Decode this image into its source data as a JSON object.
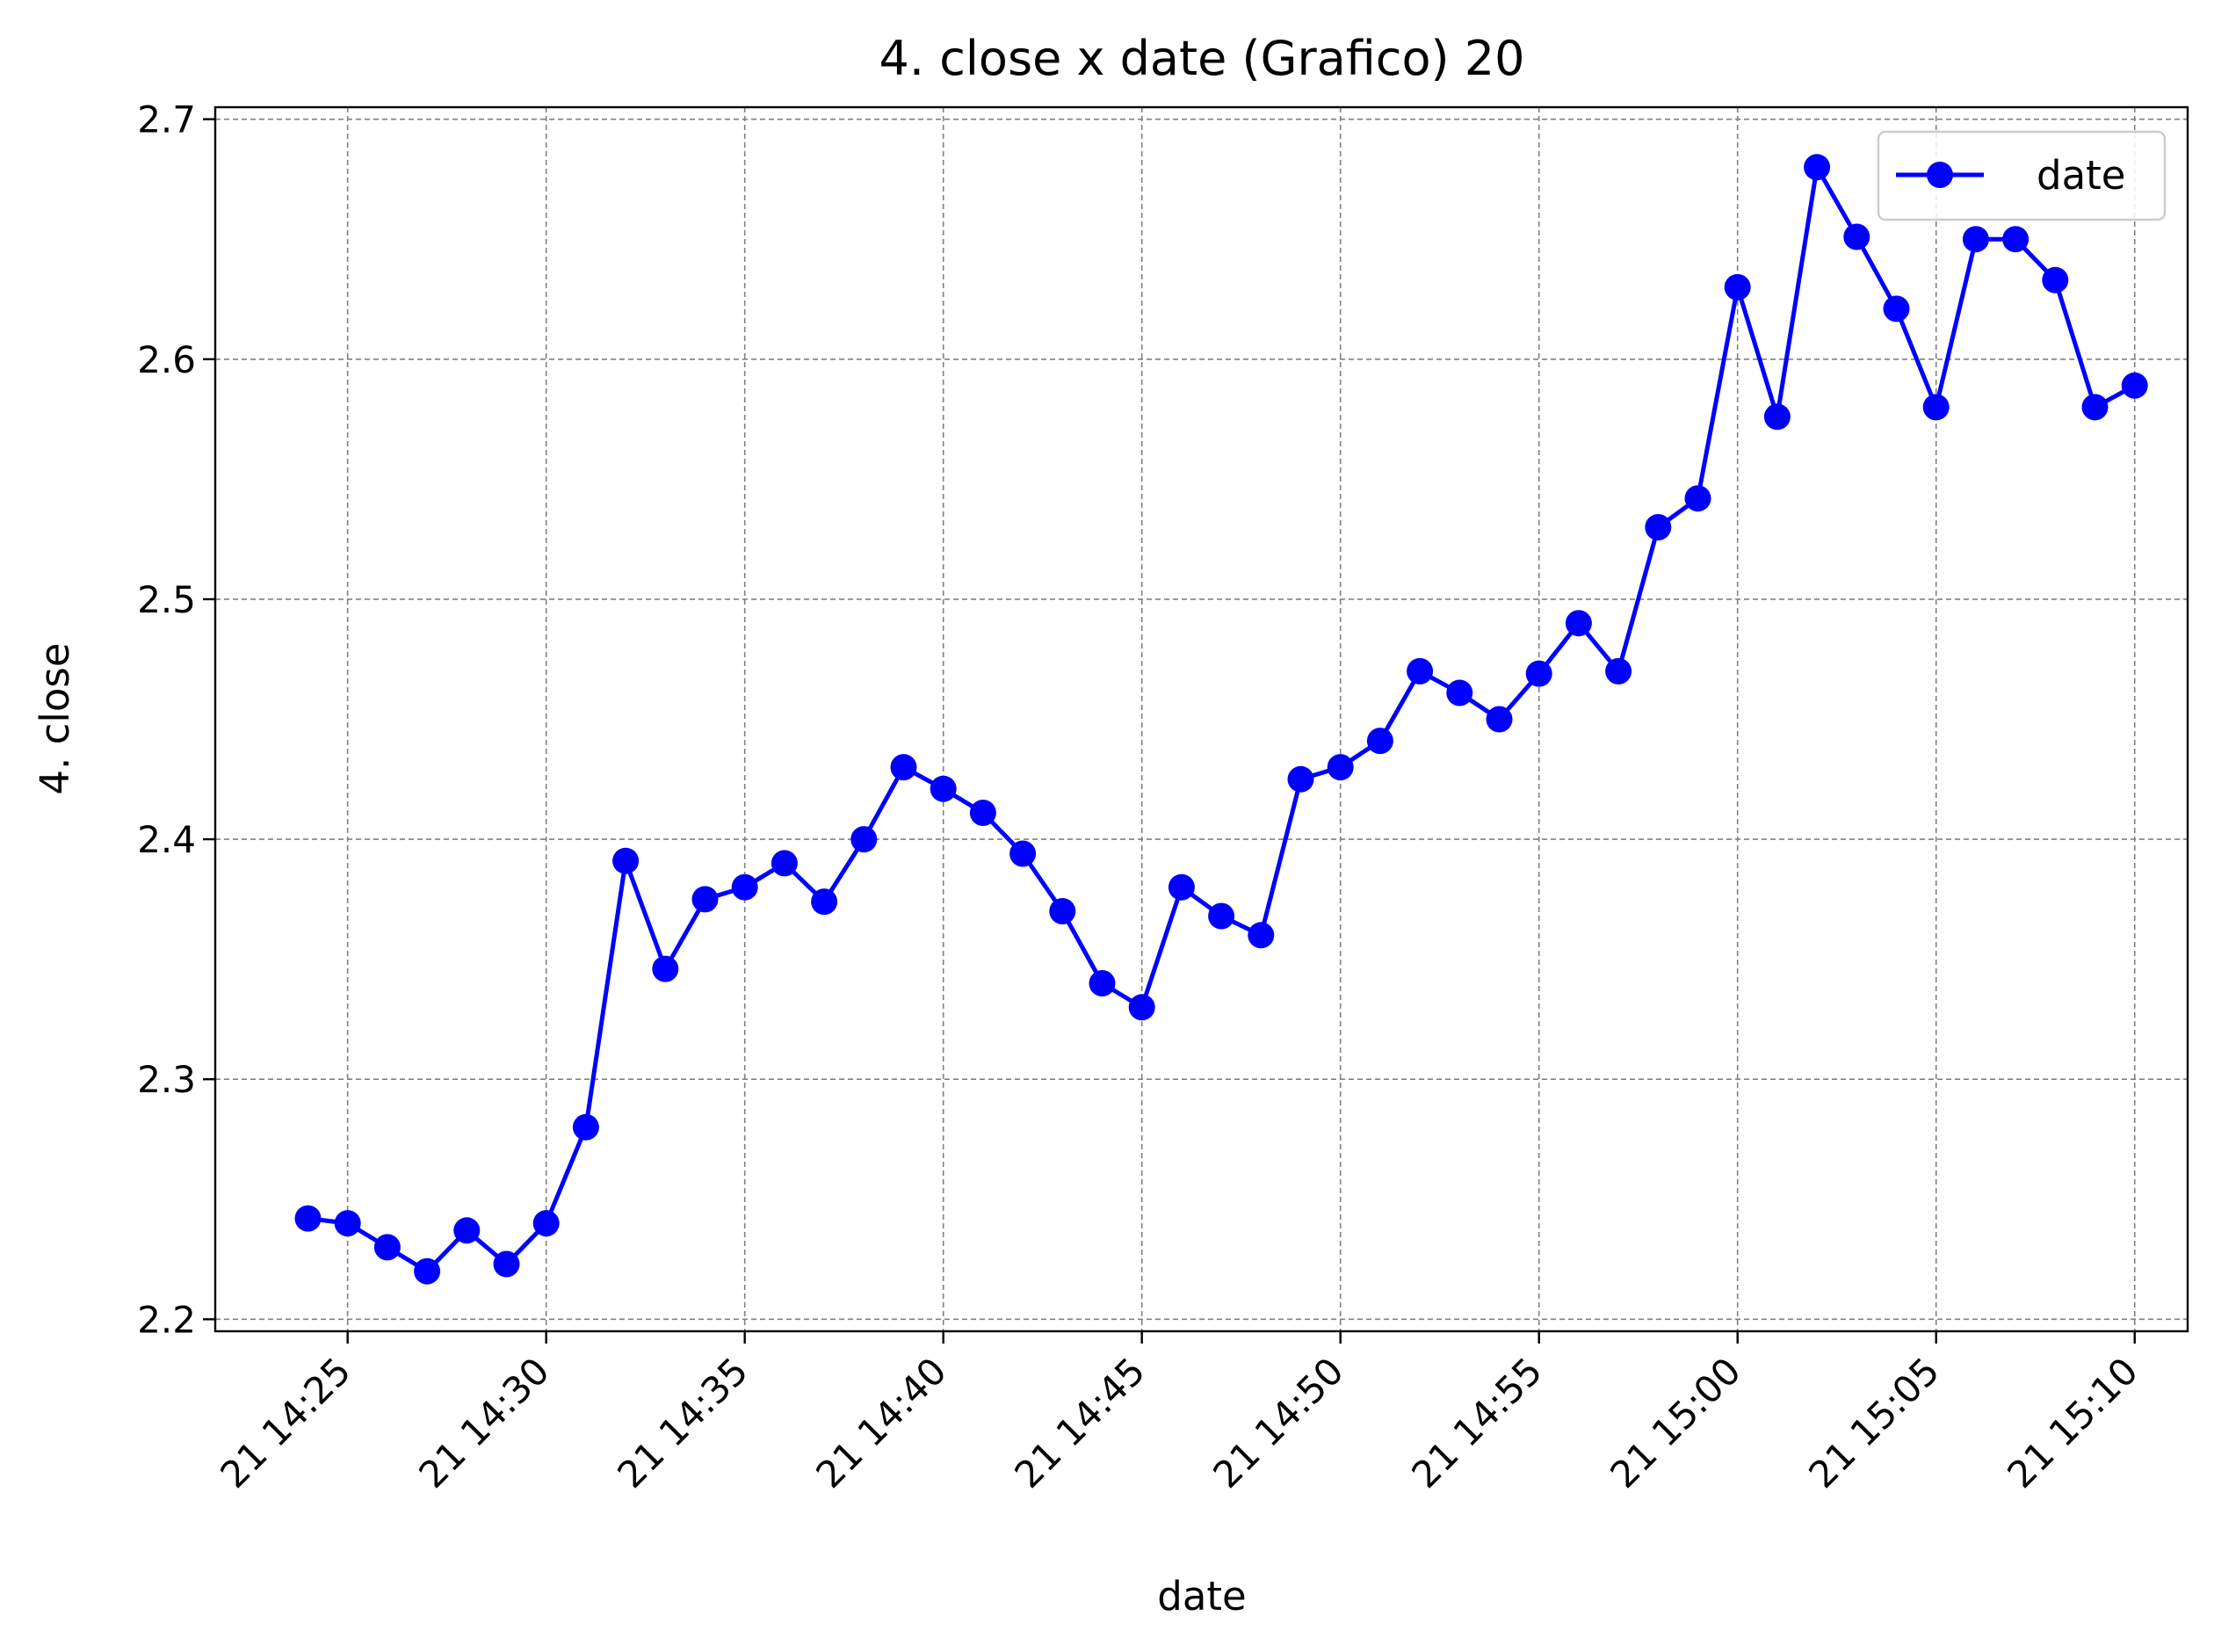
{
  "chart_data": {
    "type": "line",
    "title": "4. close x date (Grafico) 20",
    "xlabel": "date",
    "ylabel": "4. close",
    "ylim": [
      2.195,
      2.705
    ],
    "xlim": [
      "21 14:21:40",
      "21 15:11:20"
    ],
    "grid": true,
    "legend_position": "top-right",
    "color": "#0000ff",
    "y_ticks": [
      2.2,
      2.3,
      2.4,
      2.5,
      2.6,
      2.7
    ],
    "y_tick_labels": [
      "2.2",
      "2.3",
      "2.4",
      "2.5",
      "2.6",
      "2.7"
    ],
    "x_ticks": [
      "21 14:25",
      "21 14:30",
      "21 14:35",
      "21 14:40",
      "21 14:45",
      "21 14:50",
      "21 14:55",
      "21 15:00",
      "21 15:05",
      "21 15:10"
    ],
    "series": [
      {
        "name": "date",
        "x": [
          "21 14:24",
          "21 14:25",
          "21 14:26",
          "21 14:27",
          "21 14:28",
          "21 14:29",
          "21 14:30",
          "21 14:31",
          "21 14:32",
          "21 14:33",
          "21 14:34",
          "21 14:35",
          "21 14:36",
          "21 14:37",
          "21 14:38",
          "21 14:39",
          "21 14:40",
          "21 14:41",
          "21 14:42",
          "21 14:43",
          "21 14:44",
          "21 14:45",
          "21 14:46",
          "21 14:47",
          "21 14:48",
          "21 14:49",
          "21 14:50",
          "21 14:51",
          "21 14:52",
          "21 14:53",
          "21 14:54",
          "21 14:55",
          "21 14:56",
          "21 14:57",
          "21 14:58",
          "21 14:59",
          "21 15:00",
          "21 15:01",
          "21 15:02",
          "21 15:03",
          "21 15:04",
          "21 15:05",
          "21 15:06",
          "21 15:07",
          "21 15:08",
          "21 15:09",
          "21 15:10"
        ],
        "values": [
          2.242,
          2.24,
          2.23,
          2.22,
          2.237,
          2.223,
          2.24,
          2.28,
          2.391,
          2.346,
          2.375,
          2.38,
          2.39,
          2.374,
          2.4,
          2.43,
          2.421,
          2.411,
          2.394,
          2.37,
          2.34,
          2.33,
          2.38,
          2.368,
          2.36,
          2.425,
          2.43,
          2.441,
          2.47,
          2.461,
          2.45,
          2.469,
          2.49,
          2.47,
          2.53,
          2.542,
          2.63,
          2.576,
          2.68,
          2.651,
          2.621,
          2.58,
          2.65,
          2.65,
          2.633,
          2.58,
          2.589
        ]
      }
    ]
  }
}
